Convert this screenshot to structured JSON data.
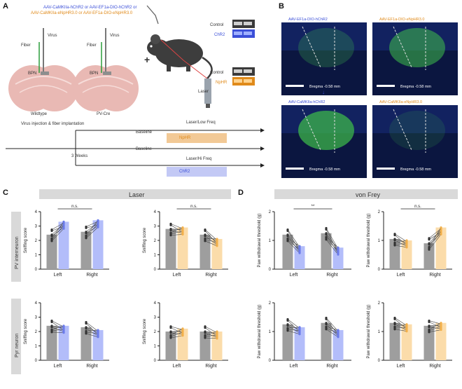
{
  "panels": {
    "a": "A",
    "b": "B",
    "c": "C",
    "d": "D"
  },
  "a": {
    "virus_line1": "AAV-CaMKIIa-hChR2 or AAV-EF1a-DIO-hChR2 or",
    "virus_line2": "AAV-CaMKIIa-eNpHR3.0 or AAV-EF1a-DIO-eNpHR3.0",
    "fiber": "Fiber",
    "virus": "Virus",
    "region": "BPN",
    "brain_left": "Wildtype",
    "brain_right": "PV-Cre",
    "laser": "Laser",
    "western_top": [
      "Control",
      "ChR2"
    ],
    "western_bottom": [
      "Control",
      "NpHR"
    ],
    "timeline_start": "Virus injection & fiber implantation",
    "timeline_week": "3 Weeks",
    "track_labels": [
      "Baseline",
      "Laser/Low Freq",
      "Laser/Hi Freq",
      "Baseline"
    ],
    "opsin_top": "NpHR",
    "opsin_bottom": "ChR2"
  },
  "b": {
    "images": [
      {
        "title": "AAV-EF1a-DIO-hChR2",
        "scale": "Bregma -0.58 mm"
      },
      {
        "title": "AAV-EF1a-DIO-eNpHR3.0",
        "scale": "Bregma -0.58 mm"
      },
      {
        "title": "AAV-CaMKIIa-hChR2",
        "scale": "Bregma -0.58 mm"
      },
      {
        "title": "AAV-CaMKIIa-eNpHR3.0",
        "scale": "Bregma -0.58 mm"
      }
    ]
  },
  "c": {
    "header": "Laser",
    "rows": [
      "PV interneuron",
      "Pyr neuron"
    ],
    "ylabels": [
      "Sniffing score",
      "Sniffing score",
      "Sniffing score",
      "Sniffing score"
    ],
    "sig": [
      "n.s.",
      "n.s."
    ]
  },
  "d": {
    "header": "von Frey",
    "ylabels": [
      "Paw withdrawal threshold (g)",
      "Paw withdrawal threshold (g)",
      "Paw withdrawal threshold (g)",
      "Paw withdrawal threshold (g)"
    ],
    "sig": [
      "**",
      "n.s."
    ]
  },
  "x_categories": [
    "Left",
    "Right"
  ],
  "colors": {
    "blue": "#6b7bea",
    "orange": "#f3b04a",
    "bar_gray": "#9e9e9e",
    "bar_blue": "#b3bdfa",
    "bar_orange": "#fbdcaa",
    "header_bg": "#d9d9d9"
  },
  "chart_data": [
    {
      "type": "bar",
      "panel": "C-PV-ChR2",
      "categories": [
        "Left",
        "Right"
      ],
      "series": [
        {
          "values": [
            2.4,
            2.6
          ]
        },
        {
          "values": [
            3.3,
            3.4
          ]
        }
      ],
      "ylim": [
        0,
        4
      ]
    },
    {
      "type": "bar",
      "panel": "C-PV-NpHR",
      "categories": [
        "Left",
        "Right"
      ],
      "series": [
        {
          "values": [
            2.8,
            2.4
          ]
        },
        {
          "values": [
            2.9,
            2.1
          ]
        }
      ],
      "ylim": [
        0,
        4
      ]
    },
    {
      "type": "bar",
      "panel": "C-Pyr-ChR2",
      "categories": [
        "Left",
        "Right"
      ],
      "series": [
        {
          "values": [
            2.4,
            2.3
          ]
        },
        {
          "values": [
            2.4,
            2.1
          ]
        }
      ],
      "ylim": [
        0,
        4
      ]
    },
    {
      "type": "bar",
      "panel": "C-Pyr-NpHR",
      "categories": [
        "Left",
        "Right"
      ],
      "series": [
        {
          "values": [
            2.0,
            2.0
          ]
        },
        {
          "values": [
            2.2,
            2.0
          ]
        }
      ],
      "ylim": [
        0,
        4
      ]
    },
    {
      "type": "bar",
      "panel": "D-PV-ChR2",
      "categories": [
        "Left",
        "Right"
      ],
      "series": [
        {
          "values": [
            1.2,
            1.25
          ]
        },
        {
          "values": [
            0.8,
            0.75
          ]
        }
      ],
      "ylim": [
        0,
        2
      ]
    },
    {
      "type": "bar",
      "panel": "D-PV-NpHR",
      "categories": [
        "Left",
        "Right"
      ],
      "series": [
        {
          "values": [
            1.05,
            0.9
          ]
        },
        {
          "values": [
            1.0,
            1.45
          ]
        }
      ],
      "ylim": [
        0,
        2
      ]
    },
    {
      "type": "bar",
      "panel": "D-Pyr-ChR2",
      "categories": [
        "Left",
        "Right"
      ],
      "series": [
        {
          "values": [
            1.25,
            1.3
          ]
        },
        {
          "values": [
            1.15,
            1.05
          ]
        }
      ],
      "ylim": [
        0,
        2
      ]
    },
    {
      "type": "bar",
      "panel": "D-Pyr-NpHR",
      "categories": [
        "Left",
        "Right"
      ],
      "series": [
        {
          "values": [
            1.3,
            1.2
          ]
        },
        {
          "values": [
            1.25,
            1.3
          ]
        }
      ],
      "ylim": [
        0,
        2
      ]
    }
  ]
}
